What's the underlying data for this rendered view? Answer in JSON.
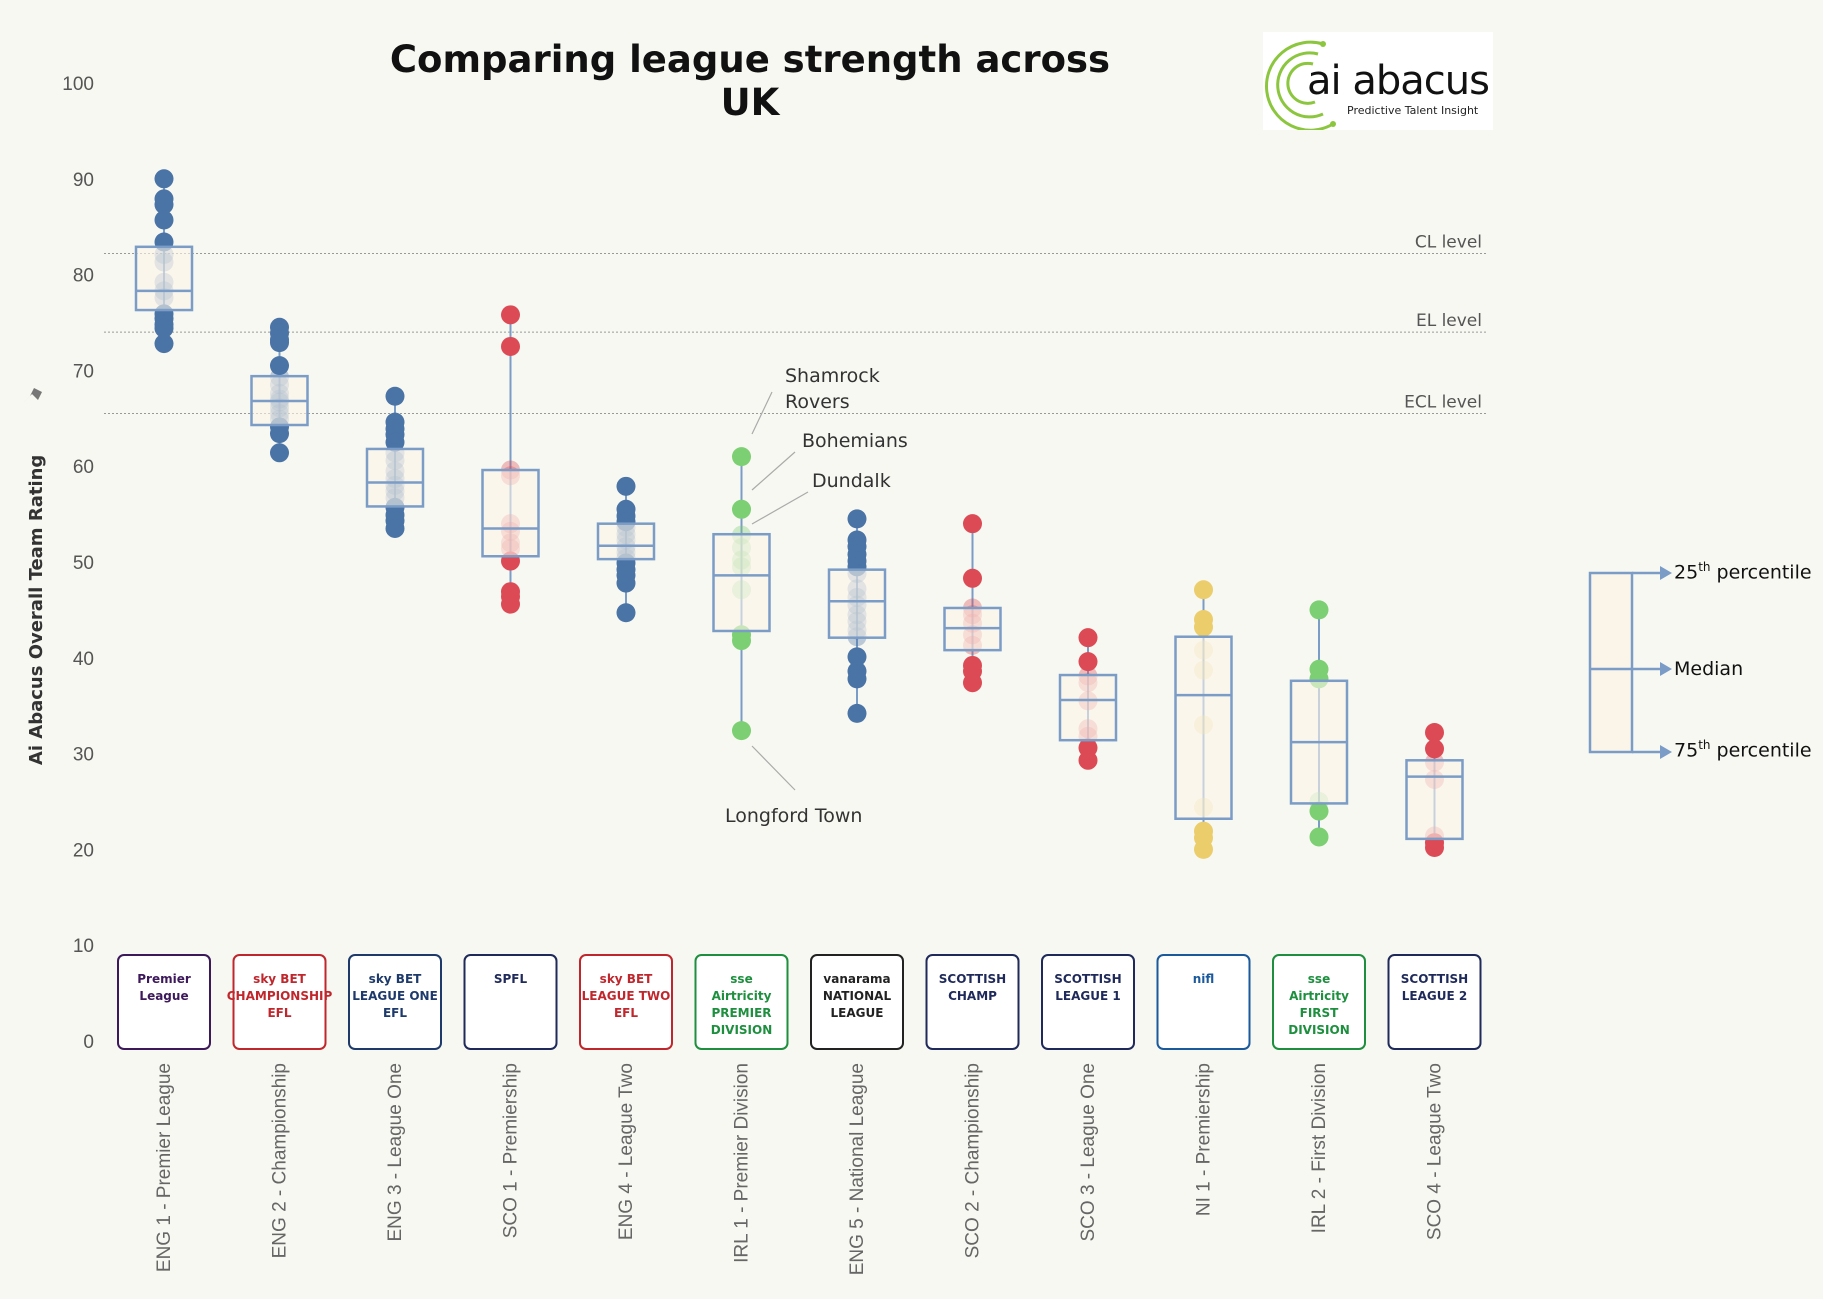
{
  "chart_data": {
    "type": "box",
    "title": "Comparing league strength across UK",
    "ylabel": "Ai Abacus Overall Team Rating",
    "xlabel": "",
    "ylim": [
      0,
      100
    ],
    "yticks": [
      0,
      10,
      20,
      30,
      40,
      50,
      60,
      70,
      80,
      90,
      100
    ],
    "grid": false,
    "reference_lines": [
      {
        "label": "CL level",
        "value": 82.2
      },
      {
        "label": "EL level",
        "value": 74.0
      },
      {
        "label": "ECL level",
        "value": 65.5
      }
    ],
    "series_colors": {
      "ENG": "#4a73a6",
      "SCO": "#dc4a55",
      "IRL": "#7ccf72",
      "NI": "#ebcd6b"
    },
    "box_color": "#7a9cc6",
    "box_fill": "#fbf5e9",
    "categories": [
      {
        "label": "ENG 1 - Premier League",
        "color": "ENG",
        "q1": 76.3,
        "median": 78.3,
        "q3": 82.9,
        "min": 72.8,
        "max": 90.0,
        "points": [
          90.0,
          87.9,
          87.3,
          85.7,
          83.4,
          82.1,
          81.3,
          79.2,
          78.3,
          77.6,
          75.9,
          75.4,
          74.8,
          74.4,
          72.8
        ]
      },
      {
        "label": "ENG 2 - Championship",
        "color": "ENG",
        "q1": 64.3,
        "median": 66.8,
        "q3": 69.4,
        "min": 61.4,
        "max": 74.5,
        "points": [
          74.5,
          73.9,
          73.2,
          72.9,
          70.5,
          69.3,
          68.5,
          67.6,
          67.0,
          66.7,
          66.1,
          65.5,
          64.9,
          64.1,
          63.4,
          61.4
        ]
      },
      {
        "label": "ENG 3 - League One",
        "color": "ENG",
        "q1": 55.8,
        "median": 58.3,
        "q3": 61.8,
        "min": 53.5,
        "max": 67.3,
        "points": [
          67.3,
          64.6,
          63.9,
          63.3,
          62.5,
          61.4,
          60.6,
          59.5,
          58.7,
          58.0,
          57.4,
          56.7,
          55.7,
          54.9,
          54.3,
          53.5
        ]
      },
      {
        "label": "SCO 1 - Premiership",
        "color": "SCO",
        "q1": 50.6,
        "median": 53.5,
        "q3": 59.6,
        "min": 45.6,
        "max": 75.8,
        "points": [
          75.8,
          72.5,
          59.6,
          59.0,
          54.0,
          53.2,
          52.0,
          51.4,
          50.1,
          46.9,
          46.4,
          45.6
        ]
      },
      {
        "label": "ENG 4 - League Two",
        "color": "ENG",
        "q1": 50.3,
        "median": 51.7,
        "q3": 54.0,
        "min": 44.7,
        "max": 57.9,
        "points": [
          57.9,
          55.5,
          54.8,
          54.2,
          53.6,
          52.9,
          52.3,
          51.6,
          51.0,
          50.4,
          49.9,
          49.2,
          48.6,
          47.8,
          44.7
        ]
      },
      {
        "label": "IRL 1 - Premier Division",
        "color": "IRL",
        "q1": 42.8,
        "median": 48.6,
        "q3": 52.9,
        "min": 32.4,
        "max": 61.0,
        "points": [
          61.0,
          55.5,
          52.8,
          51.5,
          50.2,
          49.5,
          47.1,
          42.4,
          41.8,
          32.4
        ]
      },
      {
        "label": "ENG 5 - National League",
        "color": "ENG",
        "q1": 42.1,
        "median": 45.9,
        "q3": 49.2,
        "min": 34.2,
        "max": 54.5,
        "points": [
          54.5,
          52.3,
          51.6,
          50.8,
          50.1,
          49.5,
          48.8,
          47.2,
          46.3,
          45.5,
          44.5,
          43.8,
          42.9,
          42.2,
          40.1,
          38.6,
          37.8,
          34.2
        ]
      },
      {
        "label": "SCO 2 - Championship",
        "color": "SCO",
        "q1": 40.8,
        "median": 43.1,
        "q3": 45.2,
        "min": 37.4,
        "max": 54.0,
        "points": [
          54.0,
          48.3,
          45.2,
          44.5,
          43.6,
          42.4,
          41.3,
          39.2,
          38.6,
          37.4
        ]
      },
      {
        "label": "SCO 3 - League One",
        "color": "SCO",
        "q1": 31.4,
        "median": 35.6,
        "q3": 38.2,
        "min": 29.3,
        "max": 42.1,
        "points": [
          42.1,
          39.6,
          38.1,
          37.4,
          35.5,
          32.6,
          31.8,
          30.6,
          29.3
        ]
      },
      {
        "label": "NI 1 - Premiership",
        "color": "NI",
        "q1": 23.2,
        "median": 36.1,
        "q3": 42.2,
        "min": 20.0,
        "max": 47.1,
        "points": [
          47.1,
          44.0,
          43.2,
          40.8,
          38.7,
          33.0,
          24.4,
          21.9,
          21.2,
          20.0
        ]
      },
      {
        "label": "IRL 2 - First Division",
        "color": "IRL",
        "q1": 24.8,
        "median": 31.2,
        "q3": 37.6,
        "min": 21.3,
        "max": 45.0,
        "points": [
          45.0,
          38.8,
          37.8,
          25.0,
          24.0,
          21.3
        ]
      },
      {
        "label": "SCO 4 - League Two",
        "color": "SCO",
        "q1": 21.1,
        "median": 27.6,
        "q3": 29.3,
        "min": 20.2,
        "max": 32.2,
        "points": [
          32.2,
          30.5,
          29.1,
          27.3,
          21.4,
          20.7,
          20.2
        ]
      }
    ],
    "annotations": [
      {
        "text": "Shamrock Rovers",
        "category": 5,
        "value": 61.0
      },
      {
        "text": "Bohemians",
        "category": 5,
        "value": 55.5
      },
      {
        "text": "Dundalk",
        "category": 5,
        "value": 52.8
      },
      {
        "text": "Longford Town",
        "category": 5,
        "value": 32.4
      }
    ]
  },
  "logos": [
    {
      "name": "premier-league-logo",
      "text": "Premier League"
    },
    {
      "name": "championship-logo",
      "text": "sky BET CHAMPIONSHIP EFL"
    },
    {
      "name": "league-one-logo",
      "text": "sky BET LEAGUE ONE EFL"
    },
    {
      "name": "spfl-logo",
      "text": "SPFL"
    },
    {
      "name": "league-two-logo",
      "text": "sky BET LEAGUE TWO EFL"
    },
    {
      "name": "sse-premier-logo",
      "text": "sse Airtricity PREMIER DIVISION"
    },
    {
      "name": "vanarama-logo",
      "text": "vanarama NATIONAL LEAGUE"
    },
    {
      "name": "scottish-champ-logo",
      "text": "SCOTTISH CHAMP"
    },
    {
      "name": "scottish-league1-logo",
      "text": "SCOTTISH LEAGUE 1"
    },
    {
      "name": "nifl-logo",
      "text": "nifl"
    },
    {
      "name": "sse-first-logo",
      "text": "sse Airtricity FIRST DIVISION"
    },
    {
      "name": "scottish-league2-logo",
      "text": "SCOTTISH LEAGUE 2"
    }
  ],
  "brand": {
    "main": "ai abacus",
    "sub": "Predictive Talent Insight"
  },
  "legend": {
    "top": "25",
    "top_sup": "th",
    "top_rest": " percentile",
    "median": "Median",
    "bottom": "75",
    "bottom_sup": "th",
    "bottom_rest": " percentile"
  }
}
